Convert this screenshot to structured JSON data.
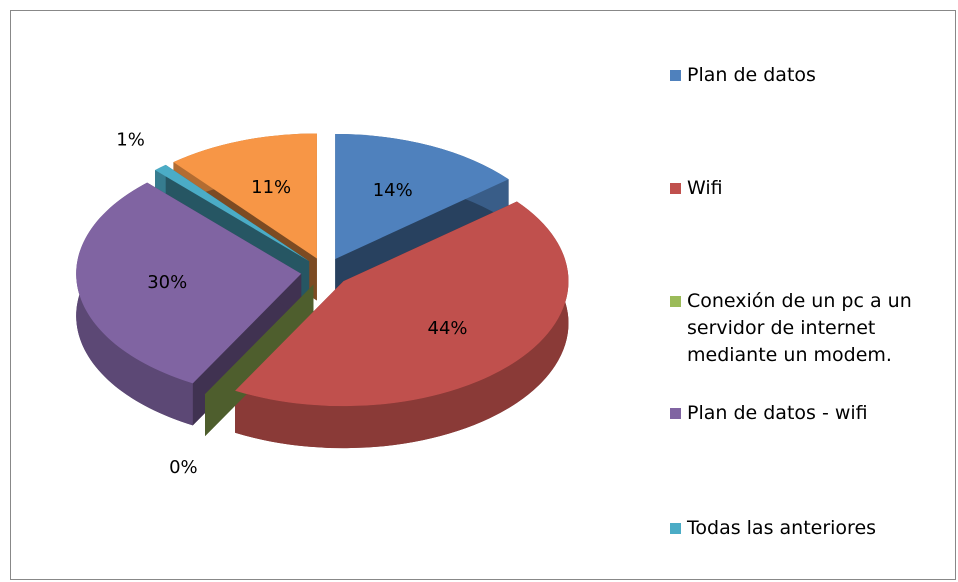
{
  "chart_data": {
    "type": "pie",
    "categories": [
      "Plan de datos",
      "Wifi",
      "Conexión de un pc a un servidor de internet mediante un modem.",
      "Plan de datos - wifi",
      "Todas las anteriores",
      null
    ],
    "values": [
      14,
      44,
      0,
      30,
      1,
      11
    ],
    "value_labels": [
      "14%",
      "44%",
      "0%",
      "30%",
      "1%",
      "11%"
    ],
    "colors": [
      "#4f81bd",
      "#c0504d",
      "#9bbb59",
      "#8064a2",
      "#4bacc6",
      "#f79646"
    ],
    "legend": "right"
  }
}
